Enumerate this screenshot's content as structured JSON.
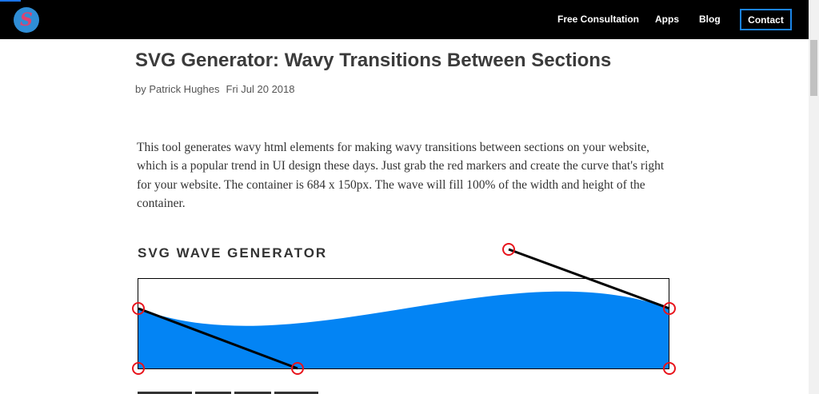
{
  "nav": {
    "logo_glyph": "S",
    "links": [
      "Free Consultation",
      "Apps",
      "Blog"
    ],
    "contact": "Contact"
  },
  "article": {
    "title": "SVG Generator: Wavy Transitions Between Sections",
    "author": "by Patrick Hughes",
    "date": "Fri Jul 20 2018",
    "intro": "This tool generates wavy html elements for making wavy transitions between sections on your website, which is a popular trend in UI design these days. Just grab the red markers and create the curve that's right for your website. The container is 684 x 150px. The wave will fill 100% of the width and height of the container."
  },
  "generator": {
    "heading": "SVG WAVE GENERATOR"
  },
  "colors": {
    "wave": "#0384f4",
    "marker": "#e8141c",
    "contact_border": "#1b84e7"
  }
}
